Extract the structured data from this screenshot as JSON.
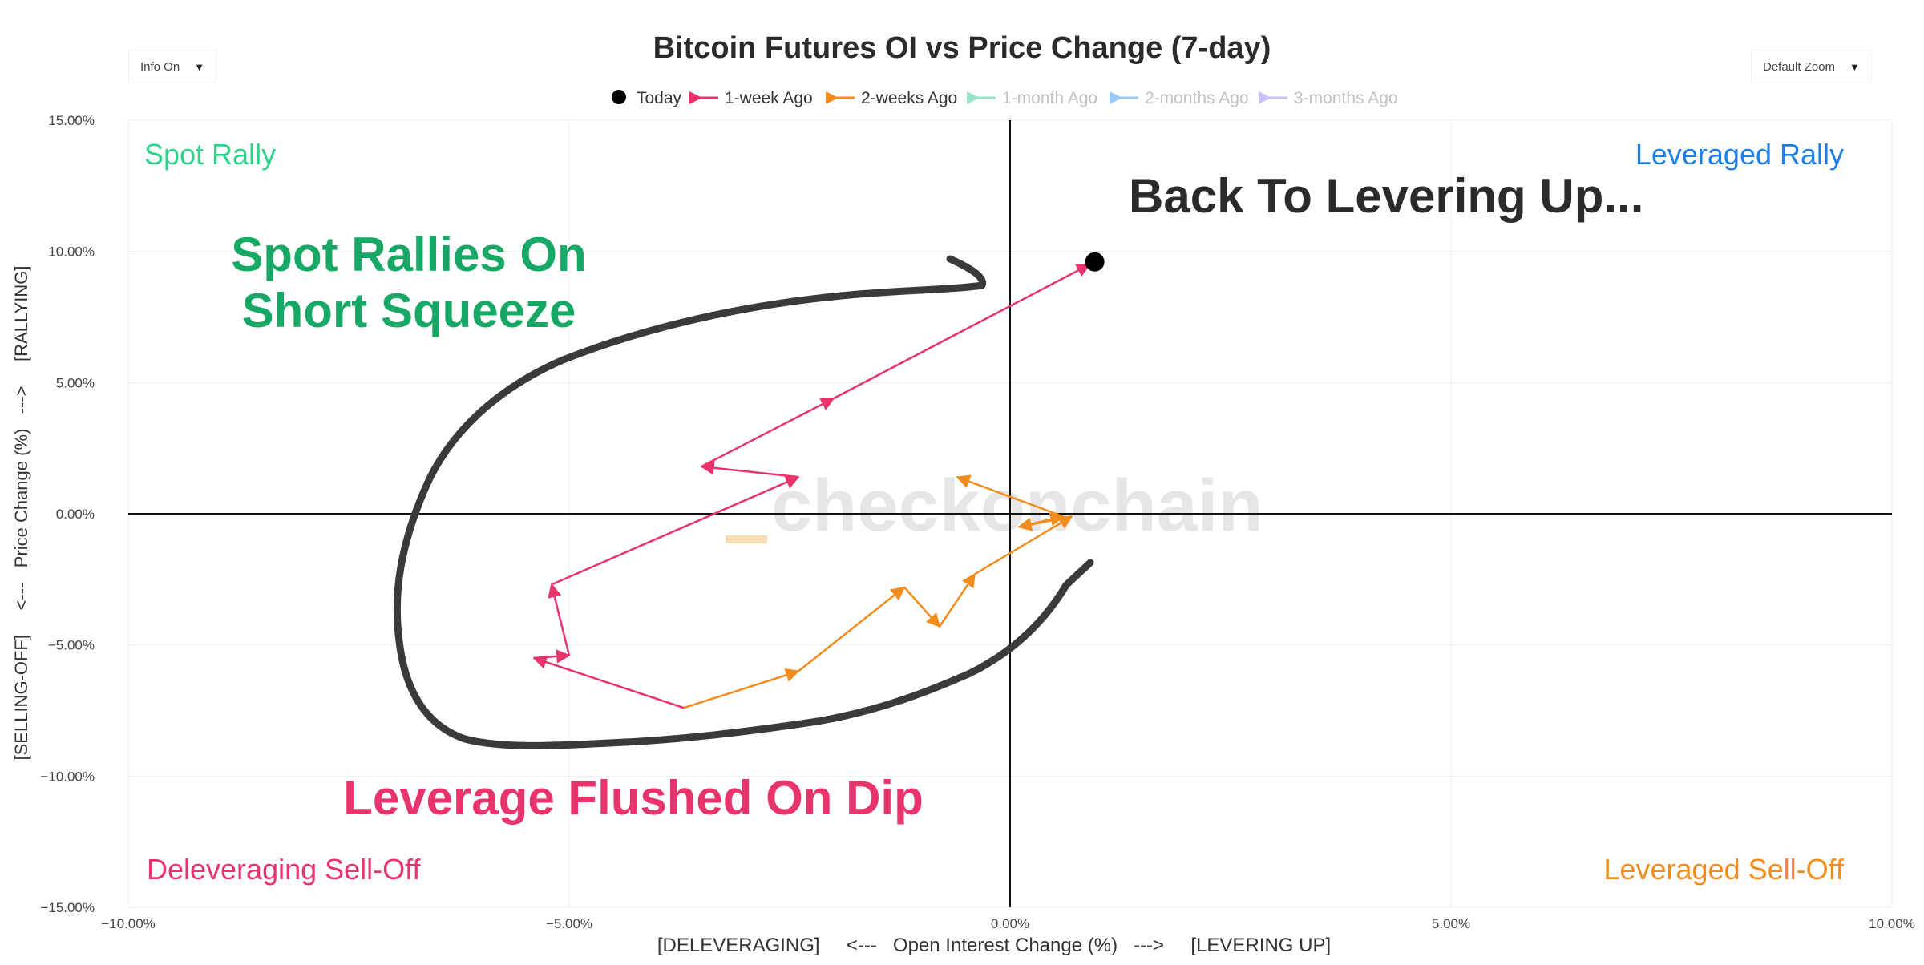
{
  "controls": {
    "info_label": "Info On",
    "zoom_label": "Default Zoom",
    "caret": "▼"
  },
  "chart_data": {
    "type": "scatter",
    "title": "Bitcoin Futures OI vs Price Change (7-day)",
    "xlabel": "[DELEVERAGING]     <---   Open Interest Change (%)   --->     [LEVERING UP]",
    "ylabel": "[SELLING-OFF]     <---   Price Change (%)   --->     [RALLYING]",
    "xlim": [
      -10,
      10
    ],
    "ylim": [
      -15,
      15
    ],
    "x_ticks": [
      {
        "value": -10,
        "label": "−10.00%"
      },
      {
        "value": -5,
        "label": "−5.00%"
      },
      {
        "value": 0,
        "label": "0.00%"
      },
      {
        "value": 5,
        "label": "5.00%"
      },
      {
        "value": 10,
        "label": "10.00%"
      }
    ],
    "y_ticks": [
      {
        "value": 15,
        "label": "15.00%"
      },
      {
        "value": 10,
        "label": "10.00%"
      },
      {
        "value": 5,
        "label": "5.00%"
      },
      {
        "value": 0,
        "label": "0.00%"
      },
      {
        "value": -5,
        "label": "−5.00%"
      },
      {
        "value": -10,
        "label": "−10.00%"
      },
      {
        "value": -15,
        "label": "−15.00%"
      }
    ],
    "grid": true,
    "legend_position": "top-center",
    "legend": [
      {
        "name": "Today",
        "color": "#000000",
        "marker": "dot",
        "faded": false
      },
      {
        "name": "1-week Ago",
        "color": "#e8336d",
        "marker": "arrow",
        "faded": false
      },
      {
        "name": "2-weeks Ago",
        "color": "#f28c1c",
        "marker": "arrow",
        "faded": false
      },
      {
        "name": "1-month Ago",
        "color": "#4fd6a6",
        "marker": "arrow",
        "faded": true
      },
      {
        "name": "2-months Ago",
        "color": "#5aa6f2",
        "marker": "arrow",
        "faded": true
      },
      {
        "name": "3-months Ago",
        "color": "#a99af0",
        "marker": "arrow",
        "faded": true
      }
    ],
    "series": [
      {
        "name": "2-weeks Ago",
        "color": "#f28c1c",
        "points": [
          {
            "x": -3.7,
            "y": -7.4
          },
          {
            "x": -2.4,
            "y": -6.0
          },
          {
            "x": -1.2,
            "y": -2.8
          },
          {
            "x": -0.8,
            "y": -4.3
          },
          {
            "x": -0.4,
            "y": -2.3
          },
          {
            "x": 0.7,
            "y": -0.1
          },
          {
            "x": 0.1,
            "y": -0.5
          },
          {
            "x": 0.6,
            "y": -0.1
          },
          {
            "x": -0.6,
            "y": 1.4
          }
        ]
      },
      {
        "name": "1-week Ago",
        "color": "#e8336d",
        "points": [
          {
            "x": -3.7,
            "y": -7.4
          },
          {
            "x": -5.4,
            "y": -5.5
          },
          {
            "x": -5.0,
            "y": -5.4
          },
          {
            "x": -5.2,
            "y": -2.7
          },
          {
            "x": -2.4,
            "y": 1.4
          },
          {
            "x": -3.5,
            "y": 1.8
          },
          {
            "x": -2.0,
            "y": 4.4
          },
          {
            "x": 0.9,
            "y": 9.5
          }
        ]
      },
      {
        "name": "Today",
        "color": "#000000",
        "points": [
          {
            "x": 0.96,
            "y": 9.6
          }
        ]
      }
    ],
    "quadrant_labels": [
      {
        "text": "Spot Rally",
        "position": "top-left",
        "color": "#2ed38a"
      },
      {
        "text": "Leveraged Rally",
        "position": "top-right",
        "color": "#1e7fe6"
      },
      {
        "text": "Deleveraging Sell-Off",
        "position": "bottom-left",
        "color": "#e8336d"
      },
      {
        "text": "Leveraged Sell-Off",
        "position": "bottom-right",
        "color": "#f28c1c"
      }
    ],
    "annotations": [
      {
        "text": "Back To Levering Up...",
        "color": "#2b2b2b"
      },
      {
        "text": "Spot Rallies On",
        "color": "#16a864"
      },
      {
        "text": "Short Squeeze",
        "color": "#16a864"
      },
      {
        "text": "Leverage Flushed On Dip",
        "color": "#e8336d"
      }
    ],
    "watermark": "checkonchain"
  }
}
